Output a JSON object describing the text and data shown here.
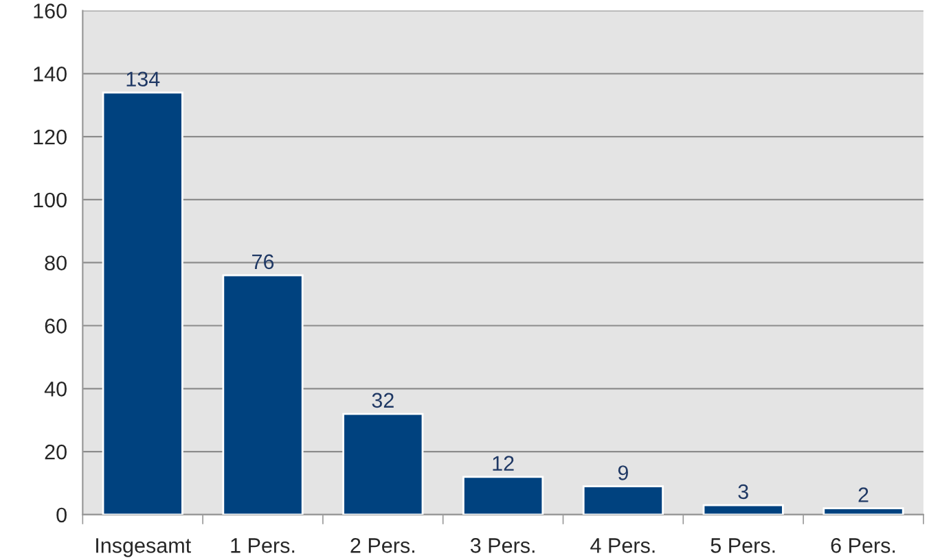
{
  "chart_data": {
    "type": "bar",
    "categories": [
      "Insgesamt",
      "1 Pers.",
      "2 Pers.",
      "3 Pers.",
      "4 Pers.",
      "5 Pers.",
      "6 Pers."
    ],
    "values": [
      134,
      76,
      32,
      12,
      9,
      3,
      2
    ],
    "color": "#00427f",
    "ylim": [
      0,
      160
    ],
    "yticks": [
      0,
      20,
      40,
      60,
      80,
      100,
      120,
      140,
      160
    ],
    "grid": "y",
    "data_labels": true
  }
}
